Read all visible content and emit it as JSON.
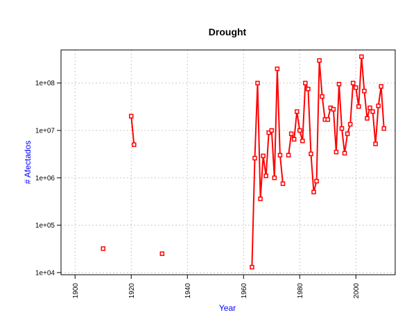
{
  "chart_data": {
    "type": "line",
    "title": "Drought",
    "xlabel": "Year",
    "ylabel": "# Afectados",
    "label_color": "#0000ff",
    "series_color": "#ff0000",
    "grid": true,
    "y_scale": "log",
    "xlim": [
      1895,
      2014
    ],
    "ylim": [
      9000,
      500000000
    ],
    "x_ticks": [
      1900,
      1920,
      1940,
      1960,
      1980,
      2000
    ],
    "x_tick_labels": [
      "1900",
      "1920",
      "1940",
      "1960",
      "1980",
      "2000"
    ],
    "y_ticks": [
      10000,
      100000,
      1000000,
      10000000,
      100000000
    ],
    "y_tick_labels": [
      "1e+04",
      "1e+05",
      "1e+06",
      "1e+07",
      "1e+08"
    ],
    "series": [
      {
        "segments": [
          [
            [
              1910,
              32000
            ]
          ],
          [
            [
              1920,
              20000000
            ],
            [
              1921,
              5000000
            ]
          ],
          [
            [
              1931,
              25000
            ]
          ],
          [
            [
              1963,
              13000
            ],
            [
              1964,
              2600000
            ],
            [
              1965,
              100000000
            ],
            [
              1966,
              360000
            ],
            [
              1967,
              2900000
            ],
            [
              1968,
              1100000
            ],
            [
              1969,
              9000000
            ],
            [
              1970,
              10000000
            ],
            [
              1971,
              1000000
            ],
            [
              1972,
              200000000
            ],
            [
              1973,
              3000000
            ],
            [
              1974,
              750000
            ]
          ],
          [
            [
              1976,
              3000000
            ],
            [
              1977,
              8500000
            ],
            [
              1978,
              6500000
            ],
            [
              1979,
              25000000
            ],
            [
              1980,
              10000000
            ],
            [
              1981,
              6000000
            ],
            [
              1982,
              100000000
            ],
            [
              1983,
              75000000
            ],
            [
              1984,
              3200000
            ],
            [
              1985,
              500000
            ],
            [
              1986,
              850000
            ],
            [
              1987,
              300000000
            ],
            [
              1988,
              52000000
            ],
            [
              1989,
              17000000
            ],
            [
              1990,
              17000000
            ],
            [
              1991,
              30000000
            ],
            [
              1992,
              28000000
            ],
            [
              1993,
              3500000
            ],
            [
              1994,
              95000000
            ],
            [
              1995,
              11000000
            ],
            [
              1996,
              3300000
            ],
            [
              1997,
              8500000
            ],
            [
              1998,
              13500000
            ],
            [
              1999,
              100000000
            ],
            [
              2000,
              80000000
            ],
            [
              2001,
              32000000
            ],
            [
              2002,
              360000000
            ],
            [
              2003,
              68000000
            ],
            [
              2004,
              18000000
            ],
            [
              2005,
              30000000
            ],
            [
              2006,
              25000000
            ],
            [
              2007,
              5200000
            ],
            [
              2008,
              33000000
            ],
            [
              2009,
              85000000
            ],
            [
              2010,
              11000000
            ]
          ]
        ]
      }
    ]
  }
}
